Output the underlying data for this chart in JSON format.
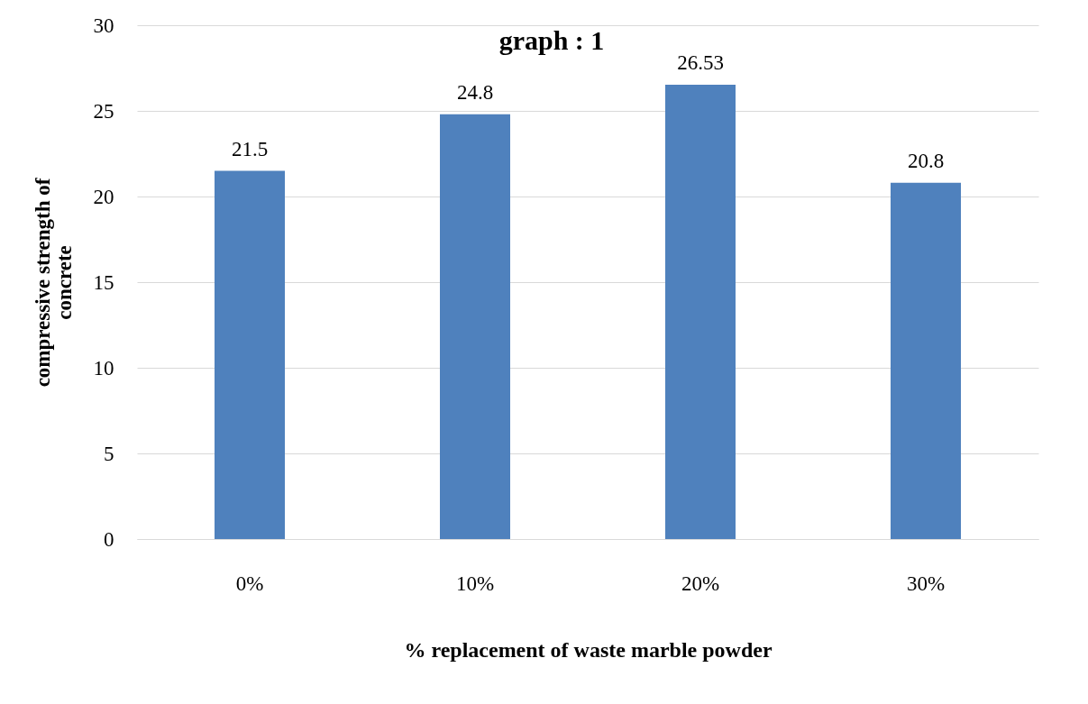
{
  "chart_data": {
    "type": "bar",
    "title": "graph : 1",
    "xlabel": "% replacement of waste marble powder",
    "ylabel": "compressive strength of concrete",
    "categories": [
      "0%",
      "10%",
      "20%",
      "30%"
    ],
    "values": [
      21.5,
      24.8,
      26.53,
      20.8
    ],
    "color": "#4f81bd",
    "ylim": [
      0,
      30
    ],
    "yticks": [
      0,
      5,
      10,
      15,
      20,
      25,
      30
    ],
    "grid": "y",
    "data_labels": true
  }
}
